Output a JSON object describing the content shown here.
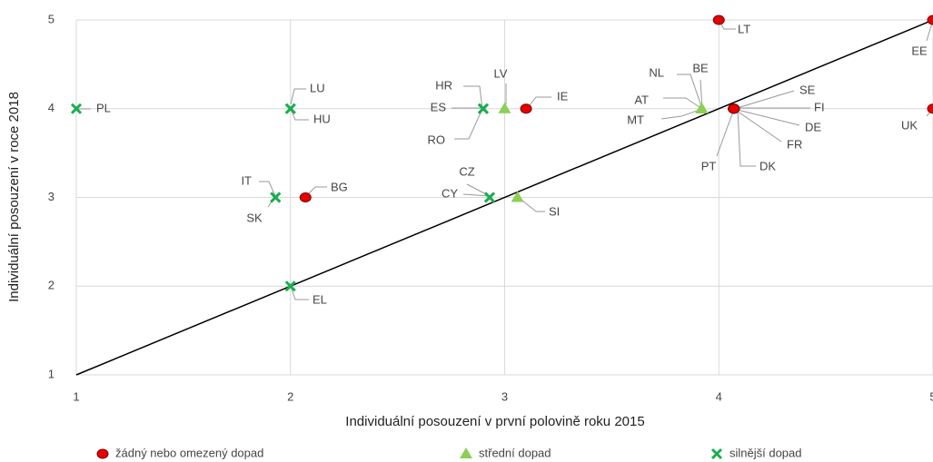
{
  "chart_data": {
    "type": "scatter",
    "xlabel": "Individuální posouzení v první polovině roku 2015",
    "ylabel": "Individuální posouzení v roce 2018",
    "xlim": [
      1,
      5
    ],
    "ylim": [
      1,
      5
    ],
    "xticks": [
      1,
      2,
      3,
      4,
      5
    ],
    "yticks": [
      1,
      2,
      3,
      4,
      5
    ],
    "grid": true,
    "legend": "bottom",
    "series": [
      {
        "name": "žádný nebo omezený dopad",
        "color": "#e60000",
        "marker": "circle",
        "labels": [
          "LT",
          "EE",
          "IE",
          "BG",
          "UK",
          "SE",
          "FI",
          "DE",
          "FR",
          "DK",
          "PT"
        ],
        "x": [
          4,
          5,
          3.1,
          2.07,
          5,
          4.07,
          4.07,
          4.07,
          4.07,
          4.07,
          4.07
        ],
        "y": [
          5,
          5,
          4,
          3,
          4,
          4,
          4,
          4,
          4,
          4,
          4
        ]
      },
      {
        "name": "střední dopad",
        "color": "#8ccf55",
        "marker": "triangle",
        "labels": [
          "LV",
          "SI",
          "NL",
          "BE",
          "AT",
          "MT"
        ],
        "x": [
          3,
          3.06,
          3.92,
          3.92,
          3.92,
          3.92
        ],
        "y": [
          4,
          3,
          4,
          4,
          4,
          4
        ]
      },
      {
        "name": "silnější dopad",
        "color": "#1aae4e",
        "marker": "x",
        "labels": [
          "PL",
          "LU",
          "HU",
          "IT",
          "SK",
          "EL",
          "CZ",
          "CY",
          "HR",
          "ES",
          "RO"
        ],
        "x": [
          1,
          2,
          2,
          1.93,
          1.93,
          2,
          2.93,
          2.93,
          2.9,
          2.9,
          2.9
        ],
        "y": [
          4,
          4,
          4,
          3,
          3,
          2,
          3,
          3,
          4,
          4,
          4
        ]
      }
    ]
  }
}
